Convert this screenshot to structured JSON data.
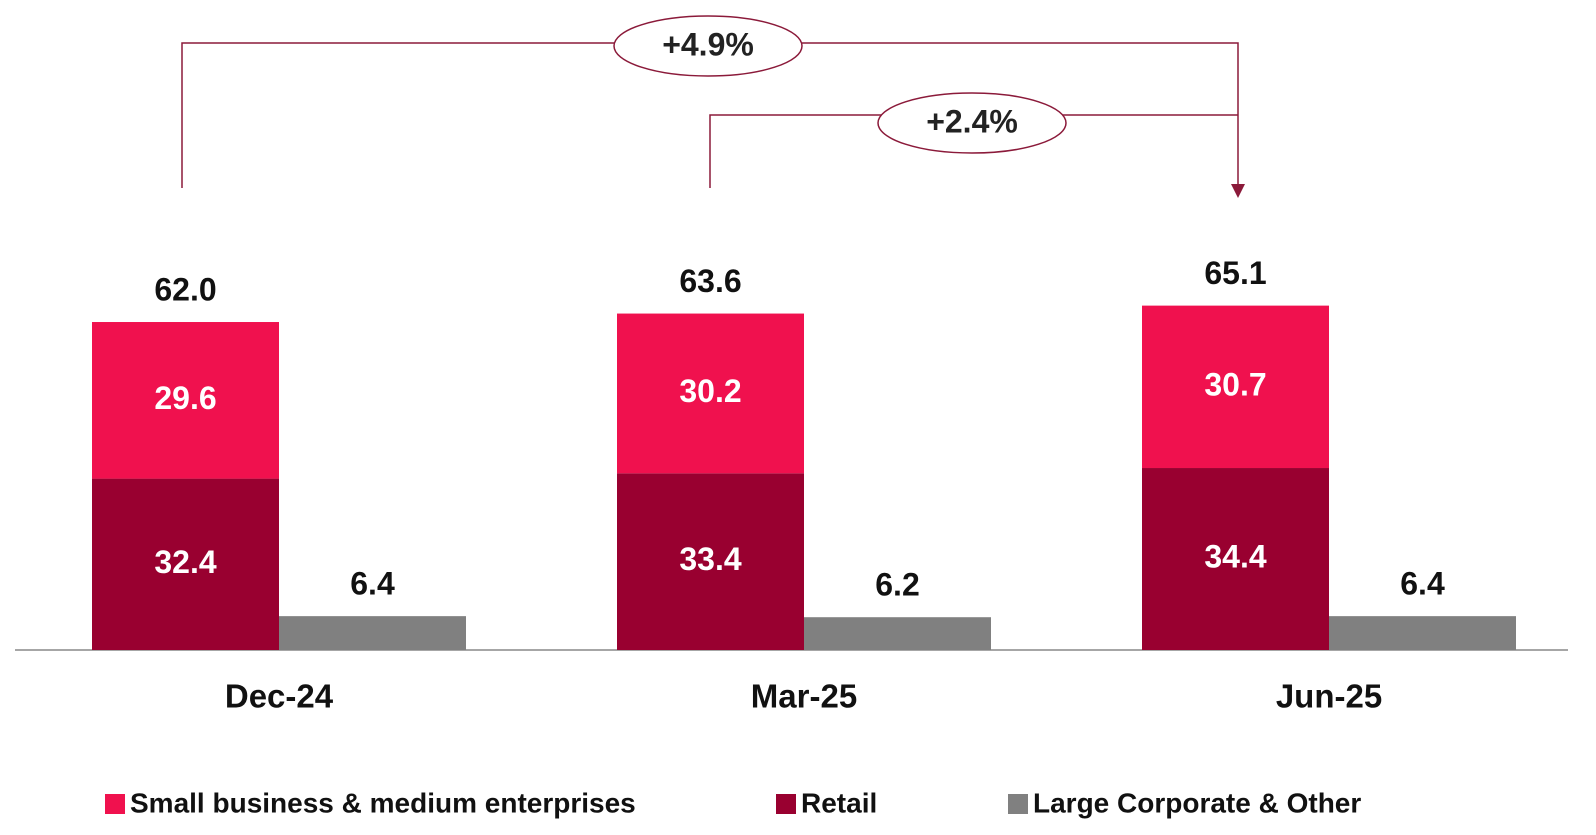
{
  "chart_data": {
    "type": "bar",
    "categories": [
      "Dec-24",
      "Mar-25",
      "Jun-25"
    ],
    "series": [
      {
        "name": "Small business & medium enterprises",
        "color": "#f0114e",
        "values": [
          29.6,
          30.2,
          30.7
        ]
      },
      {
        "name": "Retail",
        "color": "#990030",
        "values": [
          32.4,
          33.4,
          34.4
        ]
      },
      {
        "name": "Large Corporate & Other",
        "color": "#808080",
        "values": [
          6.4,
          6.2,
          6.4
        ]
      }
    ],
    "totals": {
      "values": [
        62.0,
        63.6,
        65.1
      ],
      "value_labels": [
        "62.0",
        "63.6",
        "65.1"
      ]
    },
    "annotations": [
      "+4.9%",
      "+2.4%"
    ]
  }
}
